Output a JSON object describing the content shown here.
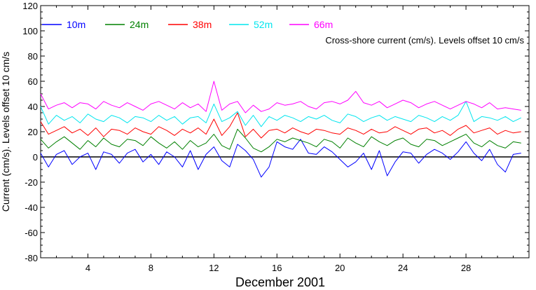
{
  "chart_data": {
    "type": "line",
    "xlabel": "December 2001",
    "ylabel": "Current (cm/s). Levels offset 10 cm/s",
    "annotation": "Cross-shore current (cm/s). Levels offset 10 cm/s",
    "xlim": [
      1,
      32
    ],
    "ylim": [
      -80,
      120
    ],
    "x_ticks": [
      4,
      8,
      12,
      16,
      20,
      24,
      28
    ],
    "y_ticks": [
      -80,
      -60,
      -40,
      -20,
      0,
      20,
      40,
      60,
      80,
      100,
      120
    ],
    "zero_line": 0,
    "legend_position": "top-left, horizontal",
    "series": [
      {
        "name": "10m",
        "color": "#0000ff",
        "offset": 0,
        "x": [
          1,
          1.5,
          2,
          2.5,
          3,
          3.5,
          4,
          4.5,
          5,
          5.5,
          6,
          6.5,
          7,
          7.5,
          8,
          8.5,
          9,
          9.5,
          10,
          10.5,
          11,
          11.5,
          12,
          12.5,
          13,
          13.5,
          14,
          14.5,
          15,
          15.5,
          16,
          16.5,
          17,
          17.5,
          18,
          18.5,
          19,
          19.5,
          20,
          20.5,
          21,
          21.5,
          22,
          22.5,
          23,
          23.5,
          24,
          24.5,
          25,
          25.5,
          26,
          26.5,
          27,
          27.5,
          28,
          28.5,
          29,
          29.5,
          30,
          30.5,
          31,
          31.5
        ],
        "y": [
          3,
          -8,
          2,
          5,
          -6,
          0,
          3,
          -10,
          4,
          2,
          -5,
          3,
          6,
          -4,
          2,
          -6,
          4,
          0,
          -8,
          5,
          -10,
          2,
          8,
          -3,
          -8,
          10,
          5,
          -2,
          -16,
          -8,
          12,
          8,
          6,
          14,
          3,
          2,
          8,
          4,
          -2,
          -8,
          -4,
          3,
          -10,
          5,
          -15,
          -4,
          4,
          3,
          -5,
          2,
          6,
          3,
          -2,
          4,
          12,
          3,
          -3,
          6,
          -6,
          -12,
          2,
          3
        ]
      },
      {
        "name": "24m",
        "color": "#008000",
        "offset": 10,
        "x": [
          1,
          1.5,
          2,
          2.5,
          3,
          3.5,
          4,
          4.5,
          5,
          5.5,
          6,
          6.5,
          7,
          7.5,
          8,
          8.5,
          9,
          9.5,
          10,
          10.5,
          11,
          11.5,
          12,
          12.5,
          13,
          13.5,
          14,
          14.5,
          15,
          15.5,
          16,
          16.5,
          17,
          17.5,
          18,
          18.5,
          19,
          19.5,
          20,
          20.5,
          21,
          21.5,
          22,
          22.5,
          23,
          23.5,
          24,
          24.5,
          25,
          25.5,
          26,
          26.5,
          27,
          27.5,
          28,
          28.5,
          29,
          29.5,
          30,
          30.5,
          31,
          31.5
        ],
        "y": [
          4,
          -3,
          2,
          6,
          1,
          -4,
          3,
          -2,
          5,
          0,
          -2,
          4,
          3,
          -1,
          6,
          1,
          -3,
          2,
          -4,
          3,
          -2,
          1,
          8,
          -1,
          -4,
          12,
          5,
          -3,
          -6,
          -2,
          4,
          2,
          5,
          3,
          1,
          -2,
          4,
          2,
          -3,
          5,
          1,
          -2,
          6,
          2,
          -1,
          3,
          5,
          0,
          -2,
          4,
          3,
          -1,
          2,
          5,
          8,
          1,
          -2,
          3,
          -1,
          -3,
          2,
          1
        ]
      },
      {
        "name": "38m",
        "color": "#ff0000",
        "offset": 20,
        "x": [
          1,
          1.5,
          2,
          2.5,
          3,
          3.5,
          4,
          4.5,
          5,
          5.5,
          6,
          6.5,
          7,
          7.5,
          8,
          8.5,
          9,
          9.5,
          10,
          10.5,
          11,
          11.5,
          12,
          12.5,
          13,
          13.5,
          14,
          14.5,
          15,
          15.5,
          16,
          16.5,
          17,
          17.5,
          18,
          18.5,
          19,
          19.5,
          20,
          20.5,
          21,
          21.5,
          22,
          22.5,
          23,
          23.5,
          24,
          24.5,
          25,
          25.5,
          26,
          26.5,
          27,
          27.5,
          28,
          28.5,
          29,
          29.5,
          30,
          30.5,
          31,
          31.5
        ],
        "y": [
          8,
          -2,
          1,
          4,
          -1,
          2,
          -3,
          3,
          -4,
          2,
          1,
          -2,
          3,
          0,
          -2,
          4,
          1,
          -3,
          2,
          -1,
          3,
          -2,
          10,
          -3,
          4,
          15,
          -4,
          2,
          -5,
          1,
          2,
          -1,
          3,
          0,
          -2,
          2,
          1,
          -1,
          -2,
          3,
          1,
          -2,
          2,
          -1,
          0,
          4,
          1,
          -2,
          2,
          3,
          -1,
          1,
          -3,
          2,
          5,
          -1,
          1,
          3,
          -2,
          1,
          -1,
          0
        ]
      },
      {
        "name": "52m",
        "color": "#00e5ee",
        "offset": 30,
        "x": [
          1,
          1.5,
          2,
          2.5,
          3,
          3.5,
          4,
          4.5,
          5,
          5.5,
          6,
          6.5,
          7,
          7.5,
          8,
          8.5,
          9,
          9.5,
          10,
          10.5,
          11,
          11.5,
          12,
          12.5,
          13,
          13.5,
          14,
          14.5,
          15,
          15.5,
          16,
          16.5,
          17,
          17.5,
          18,
          18.5,
          19,
          19.5,
          20,
          20.5,
          21,
          21.5,
          22,
          22.5,
          23,
          23.5,
          24,
          24.5,
          25,
          25.5,
          26,
          26.5,
          27,
          27.5,
          28,
          28.5,
          29,
          29.5,
          30,
          30.5,
          31,
          31.5
        ],
        "y": [
          10,
          -4,
          3,
          -1,
          2,
          -3,
          4,
          0,
          -2,
          3,
          1,
          -3,
          2,
          1,
          -2,
          3,
          -1,
          2,
          -4,
          1,
          2,
          -3,
          12,
          -2,
          1,
          6,
          -5,
          3,
          -6,
          2,
          -1,
          3,
          1,
          -2,
          2,
          0,
          3,
          -1,
          -3,
          4,
          2,
          -2,
          1,
          3,
          -1,
          2,
          0,
          -2,
          3,
          1,
          -2,
          2,
          -1,
          3,
          14,
          -2,
          2,
          1,
          -1,
          2,
          -2,
          1
        ]
      },
      {
        "name": "66m",
        "color": "#ff00ff",
        "offset": 40,
        "x": [
          1,
          1.5,
          2,
          2.5,
          3,
          3.5,
          4,
          4.5,
          5,
          5.5,
          6,
          6.5,
          7,
          7.5,
          8,
          8.5,
          9,
          9.5,
          10,
          10.5,
          11,
          11.5,
          12,
          12.5,
          13,
          13.5,
          14,
          14.5,
          15,
          15.5,
          16,
          16.5,
          17,
          17.5,
          18,
          18.5,
          19,
          19.5,
          20,
          20.5,
          21,
          21.5,
          22,
          22.5,
          23,
          23.5,
          24,
          24.5,
          25,
          25.5,
          26,
          26.5,
          27,
          27.5,
          28,
          28.5,
          29,
          29.5,
          30,
          30.5,
          31,
          31.5
        ],
        "y": [
          10,
          -2,
          1,
          3,
          -1,
          3,
          2,
          -2,
          4,
          1,
          -1,
          3,
          0,
          -3,
          2,
          4,
          1,
          -2,
          3,
          -1,
          2,
          -4,
          20,
          -3,
          2,
          4,
          -5,
          1,
          -4,
          -2,
          3,
          1,
          2,
          4,
          0,
          -2,
          3,
          4,
          2,
          5,
          12,
          3,
          1,
          4,
          -1,
          2,
          5,
          3,
          -1,
          2,
          4,
          1,
          -2,
          1,
          4,
          2,
          -1,
          3,
          -2,
          -1,
          -2,
          -3
        ]
      }
    ]
  }
}
